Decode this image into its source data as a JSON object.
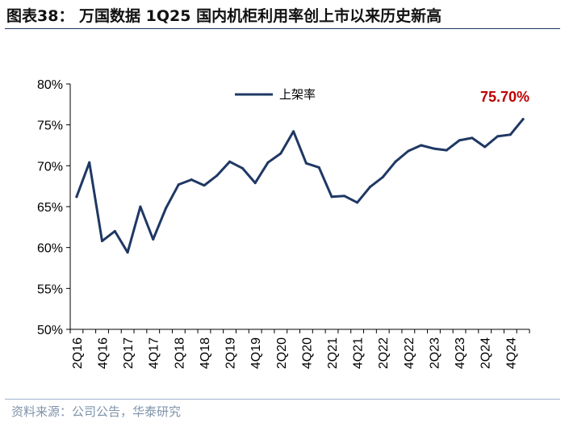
{
  "header": {
    "title": "图表38： 万国数据 1Q25 国内机柜利用率创上市以来历史新高"
  },
  "footer": {
    "source": "资料来源：公司公告，华泰研究"
  },
  "colors": {
    "line": "#1f3864",
    "annotation": "#c00000",
    "axis": "#000000",
    "rule": "#1f3864"
  },
  "chart_data": {
    "type": "line",
    "title": "",
    "xlabel": "",
    "ylabel": "",
    "ylim": [
      50,
      80
    ],
    "y_ticks": [
      50,
      55,
      60,
      65,
      70,
      75,
      80
    ],
    "y_tick_labels": [
      "50%",
      "55%",
      "60%",
      "65%",
      "70%",
      "75%",
      "80%"
    ],
    "y_unit": "%",
    "grid": false,
    "legend_position": "top-center",
    "x": [
      "2Q16",
      "3Q16",
      "4Q16",
      "1Q17",
      "2Q17",
      "3Q17",
      "4Q17",
      "1Q18",
      "2Q18",
      "3Q18",
      "4Q18",
      "1Q19",
      "2Q19",
      "3Q19",
      "4Q19",
      "1Q20",
      "2Q20",
      "3Q20",
      "4Q20",
      "1Q21",
      "2Q21",
      "3Q21",
      "4Q21",
      "1Q22",
      "2Q22",
      "3Q22",
      "4Q22",
      "1Q23",
      "2Q23",
      "3Q23",
      "4Q23",
      "1Q24",
      "2Q24",
      "3Q24",
      "4Q24",
      "1Q25"
    ],
    "x_tick_labels_shown": [
      "2Q16",
      "4Q16",
      "2Q17",
      "4Q17",
      "2Q18",
      "4Q18",
      "2Q19",
      "4Q19",
      "2Q20",
      "4Q20",
      "2Q21",
      "4Q21",
      "2Q22",
      "4Q22",
      "2Q23",
      "4Q23",
      "2Q24",
      "4Q24"
    ],
    "series": [
      {
        "name": "上架率",
        "values": [
          66.2,
          70.4,
          60.8,
          62.0,
          59.4,
          65.0,
          61.0,
          64.8,
          67.7,
          68.3,
          67.6,
          68.8,
          70.5,
          69.7,
          67.9,
          70.4,
          71.5,
          74.2,
          70.3,
          69.8,
          66.2,
          66.3,
          65.5,
          67.4,
          68.6,
          70.5,
          71.8,
          72.5,
          72.1,
          71.9,
          73.1,
          73.4,
          72.3,
          73.6,
          73.8,
          75.7
        ]
      }
    ],
    "annotations": [
      {
        "text": "75.70%",
        "x": "1Q25",
        "y": 75.7
      }
    ]
  }
}
